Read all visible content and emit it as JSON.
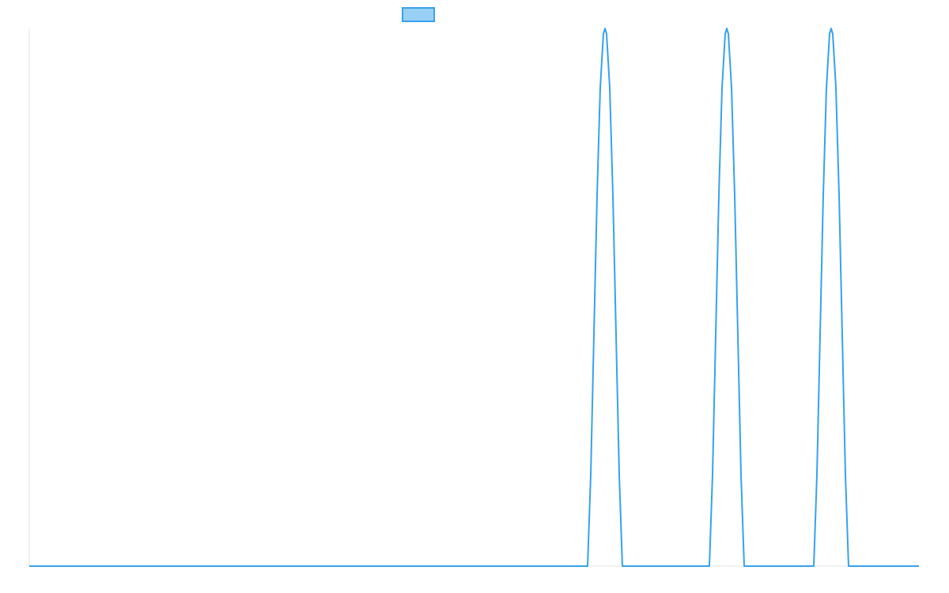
{
  "chart_data": {
    "type": "line",
    "title": "",
    "xlabel": "",
    "ylabel": "",
    "xlim": [
      0,
      1125
    ],
    "ylim": [
      0,
      1
    ],
    "grid": false,
    "legend": "top-center",
    "series": [
      {
        "line_color": "#36a2eb",
        "fill_color": "#9ad0f5",
        "x": [
          0,
          706,
          710,
          714,
          718,
          722,
          726,
          728,
          730,
          734,
          738,
          742,
          746,
          750,
          860,
          864,
          868,
          872,
          876,
          880,
          882,
          884,
          888,
          892,
          896,
          900,
          904,
          992,
          996,
          1000,
          1004,
          1008,
          1012,
          1014,
          1016,
          1020,
          1024,
          1028,
          1032,
          1036,
          1125
        ],
        "y": [
          0,
          0,
          0.17,
          0.43,
          0.69,
          0.89,
          0.99,
          1.0,
          0.99,
          0.89,
          0.69,
          0.43,
          0.17,
          0,
          0,
          0.17,
          0.43,
          0.69,
          0.89,
          0.99,
          1.0,
          0.99,
          0.89,
          0.69,
          0.43,
          0.17,
          0,
          0,
          0.17,
          0.43,
          0.69,
          0.89,
          0.99,
          1.0,
          0.99,
          0.89,
          0.69,
          0.43,
          0.17,
          0,
          0
        ]
      }
    ]
  }
}
